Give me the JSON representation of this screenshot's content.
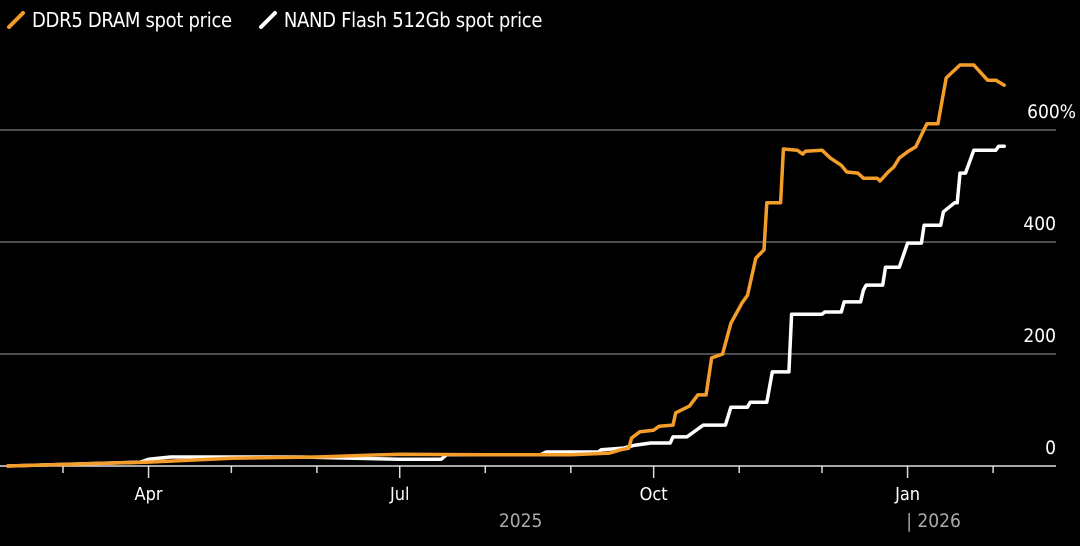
{
  "chart_data": {
    "type": "line",
    "title": "",
    "xlabel": "",
    "ylabel": "",
    "ylim": [
      0,
      760
    ],
    "y_ticks": [
      {
        "value": 0,
        "label": "0"
      },
      {
        "value": 200,
        "label": "200"
      },
      {
        "value": 400,
        "label": "400"
      },
      {
        "value": 600,
        "label": "600%"
      }
    ],
    "x_ticks": [
      {
        "date": "2025-04-01",
        "label": "Apr"
      },
      {
        "date": "2025-07-01",
        "label": "Jul"
      },
      {
        "date": "2025-10-01",
        "label": "Oct"
      },
      {
        "date": "2026-01-01",
        "label": "Jan"
      }
    ],
    "minor_ticks": [
      "2025-03-01",
      "2025-05-01",
      "2025-06-01",
      "2025-08-01",
      "2025-09-01",
      "2025-11-01",
      "2025-12-01",
      "2026-02-01"
    ],
    "year_labels": [
      {
        "label": "2025",
        "date": "2025-08-15"
      },
      {
        "label": "| 2026",
        "date": "2026-01-15"
      }
    ],
    "grid": "horizontal",
    "legend_position": "top-left",
    "series": [
      {
        "name": "DDR5 DRAM spot price",
        "color": "#f59d2a",
        "points": [
          [
            "2025-02-09",
            0
          ],
          [
            "2025-04-01",
            7
          ],
          [
            "2025-05-01",
            14
          ],
          [
            "2025-06-01",
            16
          ],
          [
            "2025-07-01",
            21
          ],
          [
            "2025-08-01",
            20
          ],
          [
            "2025-09-01",
            20
          ],
          [
            "2025-09-15",
            23
          ],
          [
            "2025-09-19",
            29
          ],
          [
            "2025-09-22",
            32
          ],
          [
            "2025-09-23",
            50
          ],
          [
            "2025-09-26",
            61
          ],
          [
            "2025-10-01",
            64
          ],
          [
            "2025-10-03",
            71
          ],
          [
            "2025-10-08",
            73
          ],
          [
            "2025-10-09",
            95
          ],
          [
            "2025-10-14",
            107
          ],
          [
            "2025-10-17",
            127
          ],
          [
            "2025-10-20",
            127
          ],
          [
            "2025-10-22",
            193
          ],
          [
            "2025-10-26",
            200
          ],
          [
            "2025-10-29",
            255
          ],
          [
            "2025-11-02",
            291
          ],
          [
            "2025-11-04",
            305
          ],
          [
            "2025-11-07",
            371
          ],
          [
            "2025-11-10",
            386
          ],
          [
            "2025-11-11",
            470
          ],
          [
            "2025-11-16",
            470
          ],
          [
            "2025-11-17",
            566
          ],
          [
            "2025-11-22",
            564
          ],
          [
            "2025-11-24",
            557
          ],
          [
            "2025-11-25",
            562
          ],
          [
            "2025-12-01",
            564
          ],
          [
            "2025-12-04",
            550
          ],
          [
            "2025-12-08",
            537
          ],
          [
            "2025-12-10",
            525
          ],
          [
            "2025-12-14",
            523
          ],
          [
            "2025-12-16",
            514
          ],
          [
            "2025-12-21",
            514
          ],
          [
            "2025-12-22",
            509
          ],
          [
            "2025-12-25",
            525
          ],
          [
            "2025-12-27",
            534
          ],
          [
            "2025-12-29",
            550
          ],
          [
            "2026-01-01",
            561
          ],
          [
            "2026-01-04",
            570
          ],
          [
            "2026-01-06",
            591
          ],
          [
            "2026-01-08",
            611
          ],
          [
            "2026-01-12",
            611
          ],
          [
            "2026-01-15",
            693
          ],
          [
            "2026-01-20",
            716
          ],
          [
            "2026-01-25",
            716
          ],
          [
            "2026-01-30",
            689
          ],
          [
            "2026-02-02",
            689
          ],
          [
            "2026-02-05",
            680
          ]
        ]
      },
      {
        "name": "NAND Flash 512Gb spot price",
        "color": "#ffffff",
        "points": [
          [
            "2025-02-09",
            0
          ],
          [
            "2025-03-29",
            7
          ],
          [
            "2025-04-01",
            12
          ],
          [
            "2025-04-09",
            16
          ],
          [
            "2025-05-26",
            16
          ],
          [
            "2025-07-01",
            12
          ],
          [
            "2025-07-16",
            12
          ],
          [
            "2025-07-18",
            20
          ],
          [
            "2025-08-21",
            20
          ],
          [
            "2025-08-23",
            25
          ],
          [
            "2025-09-11",
            25
          ],
          [
            "2025-09-12",
            29
          ],
          [
            "2025-09-20",
            32
          ],
          [
            "2025-09-24",
            37
          ],
          [
            "2025-09-30",
            41
          ],
          [
            "2025-10-07",
            41
          ],
          [
            "2025-10-08",
            52
          ],
          [
            "2025-10-13",
            52
          ],
          [
            "2025-10-15",
            59
          ],
          [
            "2025-10-19",
            73
          ],
          [
            "2025-10-27",
            73
          ],
          [
            "2025-10-29",
            105
          ],
          [
            "2025-11-04",
            105
          ],
          [
            "2025-11-05",
            114
          ],
          [
            "2025-11-11",
            114
          ],
          [
            "2025-11-13",
            168
          ],
          [
            "2025-11-19",
            168
          ],
          [
            "2025-11-20",
            271
          ],
          [
            "2025-12-01",
            271
          ],
          [
            "2025-12-02",
            275
          ],
          [
            "2025-12-08",
            275
          ],
          [
            "2025-12-09",
            293
          ],
          [
            "2025-12-15",
            293
          ],
          [
            "2025-12-16",
            314
          ],
          [
            "2025-12-17",
            323
          ],
          [
            "2025-12-23",
            323
          ],
          [
            "2025-12-24",
            355
          ],
          [
            "2025-12-29",
            355
          ],
          [
            "2026-01-01",
            398
          ],
          [
            "2026-01-06",
            398
          ],
          [
            "2026-01-07",
            430
          ],
          [
            "2026-01-13",
            430
          ],
          [
            "2026-01-14",
            454
          ],
          [
            "2026-01-18",
            470
          ],
          [
            "2026-01-19",
            470
          ],
          [
            "2026-01-20",
            523
          ],
          [
            "2026-01-22",
            523
          ],
          [
            "2026-01-25",
            564
          ],
          [
            "2026-02-02",
            564
          ],
          [
            "2026-02-03",
            571
          ],
          [
            "2026-02-05",
            571
          ]
        ]
      }
    ]
  }
}
